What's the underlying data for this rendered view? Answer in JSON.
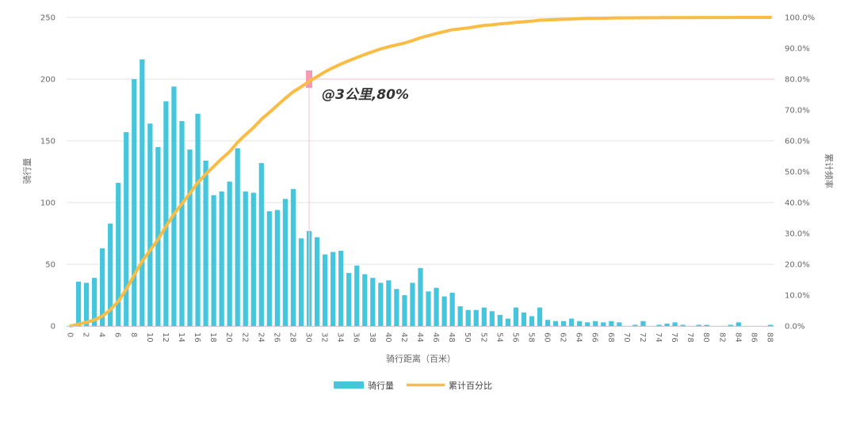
{
  "chart_data": {
    "type": "bar",
    "xlabel": "骑行距离（百米）",
    "ylabel_left": "骑行量",
    "ylabel_right": "累计频率",
    "ylim_left": [
      0,
      250
    ],
    "ylim_right": [
      0,
      100
    ],
    "left_ticks": [
      "0",
      "50",
      "100",
      "150",
      "200",
      "250"
    ],
    "right_ticks": [
      "0.0%",
      "10.0%",
      "20.0%",
      "30.0%",
      "40.0%",
      "50.0%",
      "60.0%",
      "70.0%",
      "80.0%",
      "90.0%",
      "100.0%"
    ],
    "grid": true,
    "legend_position": "bottom",
    "x": [
      0,
      1,
      2,
      3,
      4,
      5,
      6,
      7,
      8,
      9,
      10,
      11,
      12,
      13,
      14,
      15,
      16,
      17,
      18,
      19,
      20,
      21,
      22,
      23,
      24,
      25,
      26,
      27,
      28,
      29,
      30,
      31,
      32,
      33,
      34,
      35,
      36,
      37,
      38,
      39,
      40,
      41,
      42,
      43,
      44,
      45,
      46,
      47,
      48,
      49,
      50,
      51,
      52,
      53,
      54,
      55,
      56,
      57,
      58,
      59,
      60,
      61,
      62,
      63,
      64,
      65,
      66,
      67,
      68,
      69,
      70,
      71,
      72,
      73,
      74,
      75,
      76,
      77,
      78,
      79,
      80,
      81,
      82,
      83,
      84,
      85,
      86,
      87,
      88
    ],
    "x_tick_labels": [
      "0",
      "2",
      "4",
      "6",
      "8",
      "10",
      "12",
      "14",
      "16",
      "18",
      "20",
      "22",
      "24",
      "26",
      "28",
      "30",
      "32",
      "34",
      "36",
      "38",
      "40",
      "42",
      "44",
      "46",
      "48",
      "50",
      "52",
      "54",
      "56",
      "58",
      "60",
      "62",
      "64",
      "66",
      "68",
      "70",
      "72",
      "74",
      "76",
      "78",
      "80",
      "82",
      "84",
      "86",
      "88"
    ],
    "series": [
      {
        "name": "骑行量",
        "type": "bar",
        "color": "#45c6dd",
        "values": [
          0,
          36,
          35,
          39,
          63,
          83,
          116,
          157,
          200,
          216,
          164,
          145,
          182,
          194,
          166,
          143,
          172,
          134,
          106,
          109,
          117,
          144,
          109,
          108,
          132,
          93,
          94,
          103,
          111,
          71,
          77,
          72,
          58,
          60,
          61,
          43,
          49,
          42,
          39,
          35,
          37,
          30,
          25,
          35,
          47,
          28,
          31,
          24,
          27,
          16,
          13,
          13,
          15,
          12,
          9,
          6,
          15,
          11,
          8,
          15,
          5,
          4,
          4,
          6,
          4,
          3,
          4,
          3,
          4,
          3,
          0,
          1,
          4,
          0,
          1,
          2,
          3,
          1,
          0,
          1,
          1,
          0,
          0,
          1,
          3,
          0,
          0,
          0,
          1
        ]
      },
      {
        "name": "累计百分比",
        "type": "line",
        "color": "#f9bc45",
        "values": [
          0,
          0.6,
          1.2,
          2.0,
          3.2,
          5.3,
          8.0,
          11.9,
          16.5,
          21.0,
          24.5,
          28.1,
          32.3,
          36.3,
          39.6,
          43.0,
          46.5,
          49.2,
          51.7,
          54.2,
          56.5,
          59.5,
          62.0,
          64.3,
          67.0,
          69.2,
          71.5,
          73.8,
          75.9,
          77.5,
          79.3,
          80.8,
          82.4,
          83.7,
          84.9,
          86.0,
          87.0,
          88.0,
          88.9,
          89.8,
          90.5,
          91.1,
          91.7,
          92.5,
          93.4,
          94.1,
          94.8,
          95.4,
          96.0,
          96.3,
          96.6,
          97.0,
          97.4,
          97.6,
          97.9,
          98.1,
          98.4,
          98.6,
          98.8,
          99.1,
          99.2,
          99.3,
          99.4,
          99.5,
          99.6,
          99.7,
          99.7,
          99.75,
          99.8,
          99.85,
          99.85,
          99.87,
          99.9,
          99.9,
          99.9,
          99.92,
          99.95,
          99.95,
          99.95,
          99.96,
          99.97,
          99.97,
          99.97,
          99.98,
          99.99,
          99.99,
          99.99,
          99.99,
          100
        ]
      }
    ],
    "annotation": {
      "text": "@3公里,80%",
      "x": 30,
      "y_percent": 80
    }
  }
}
